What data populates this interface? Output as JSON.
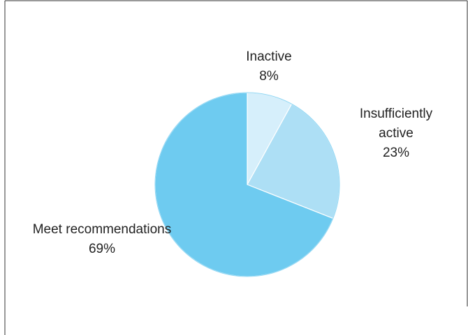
{
  "chart_data": {
    "type": "pie",
    "categories": [
      "Inactive",
      "Insufficiently active",
      "Meet recommendations"
    ],
    "values": [
      8,
      23,
      69
    ],
    "value_labels": [
      "8%",
      "23%",
      "69%"
    ],
    "colors": [
      "#d6effb",
      "#addff5",
      "#6ecbf0"
    ]
  }
}
